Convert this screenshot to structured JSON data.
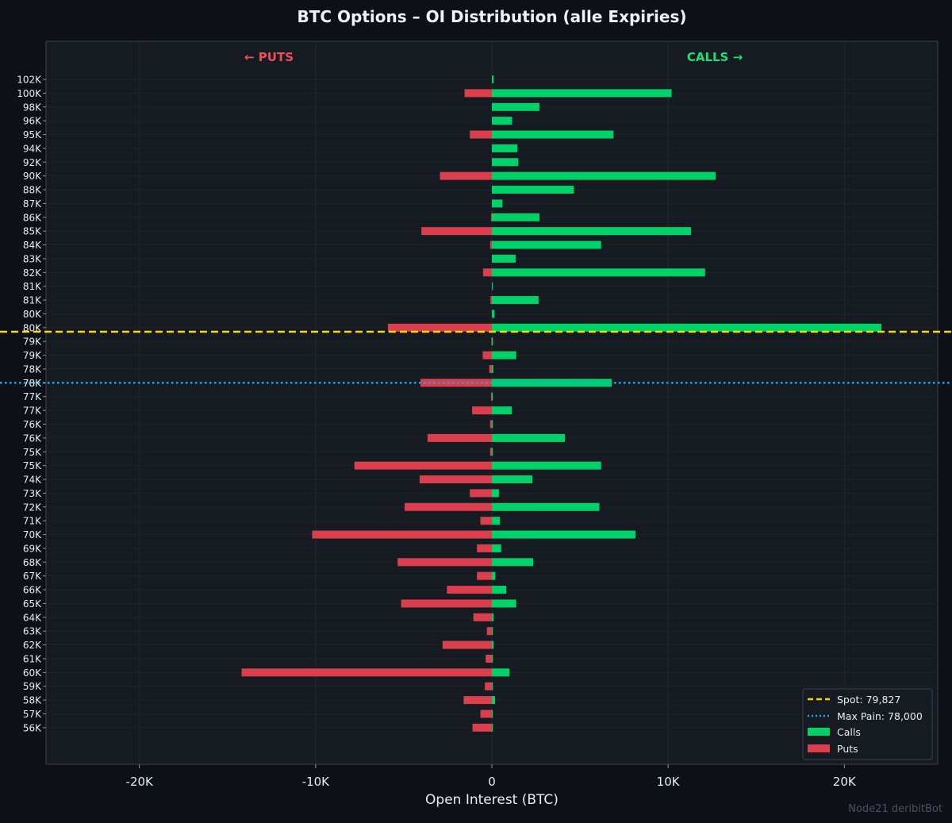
{
  "colors": {
    "background": "#0d1117",
    "plot_background": "#161b22",
    "calls": "#00d26a",
    "puts": "#db3e4d",
    "spot_line": "#f5d90a",
    "maxpain_line": "#1aa8e8",
    "calls_label": "#18e07a",
    "puts_label": "#f04e5c"
  },
  "watermark": "Node21 deribitBot",
  "chart_data": {
    "type": "bar",
    "orientation": "horizontal",
    "title": "BTC Options – OI Distribution (alle Expiries)",
    "xlabel": "Open Interest (BTC)",
    "ylabel": "",
    "xlim": [
      -25300,
      25300
    ],
    "grid": true,
    "legend_position": "bottom-right",
    "side_labels": {
      "left": "← PUTS",
      "right": "CALLS →"
    },
    "x_ticks": [
      {
        "value": -20000,
        "label": "-20K"
      },
      {
        "value": -10000,
        "label": "-10K"
      },
      {
        "value": 0,
        "label": "0"
      },
      {
        "value": 10000,
        "label": "10K"
      },
      {
        "value": 20000,
        "label": "20K"
      }
    ],
    "categories": [
      "102K",
      "100K",
      "98K",
      "96K",
      "95K",
      "94K",
      "92K",
      "90K",
      "88K",
      "87K",
      "86K",
      "85K",
      "84K",
      "83K",
      "82K",
      "81K",
      "81K",
      "80K",
      "80K",
      "79K",
      "79K",
      "78K",
      "78K",
      "77K",
      "77K",
      "76K",
      "76K",
      "75K",
      "75K",
      "74K",
      "73K",
      "72K",
      "71K",
      "70K",
      "69K",
      "68K",
      "67K",
      "66K",
      "65K",
      "64K",
      "63K",
      "62K",
      "61K",
      "60K",
      "59K",
      "58K",
      "57K",
      "56K"
    ],
    "series": [
      {
        "name": "Calls",
        "values": [
          100,
          10200,
          2700,
          1150,
          6900,
          1450,
          1500,
          12700,
          4650,
          600,
          2700,
          11300,
          6200,
          1350,
          12100,
          50,
          2650,
          150,
          22100,
          60,
          1380,
          80,
          6800,
          20,
          1130,
          10,
          4150,
          10,
          6200,
          2300,
          400,
          6100,
          460,
          8150,
          530,
          2350,
          200,
          820,
          1380,
          100,
          10,
          100,
          10,
          1000,
          10,
          180,
          10,
          50
        ]
      },
      {
        "name": "Puts",
        "values": [
          0,
          -1550,
          0,
          0,
          -1250,
          0,
          0,
          -2950,
          0,
          0,
          -50,
          -4000,
          -100,
          0,
          -500,
          0,
          -80,
          0,
          -5900,
          -30,
          -520,
          -150,
          -4050,
          -50,
          -1120,
          -100,
          -3650,
          -100,
          -7800,
          -4100,
          -1250,
          -4950,
          -650,
          -10200,
          -850,
          -5350,
          -850,
          -2550,
          -5150,
          -1050,
          -280,
          -2800,
          -350,
          -14200,
          -400,
          -1600,
          -650,
          -1100
        ]
      }
    ],
    "reference_lines": [
      {
        "name": "Spot: 79,827",
        "value": 79827,
        "style": "dashed"
      },
      {
        "name": "Max Pain: 78,000",
        "value": 78000,
        "style": "dotted"
      }
    ],
    "spot_row_position": 18.3,
    "maxpain_row_position": 22
  }
}
